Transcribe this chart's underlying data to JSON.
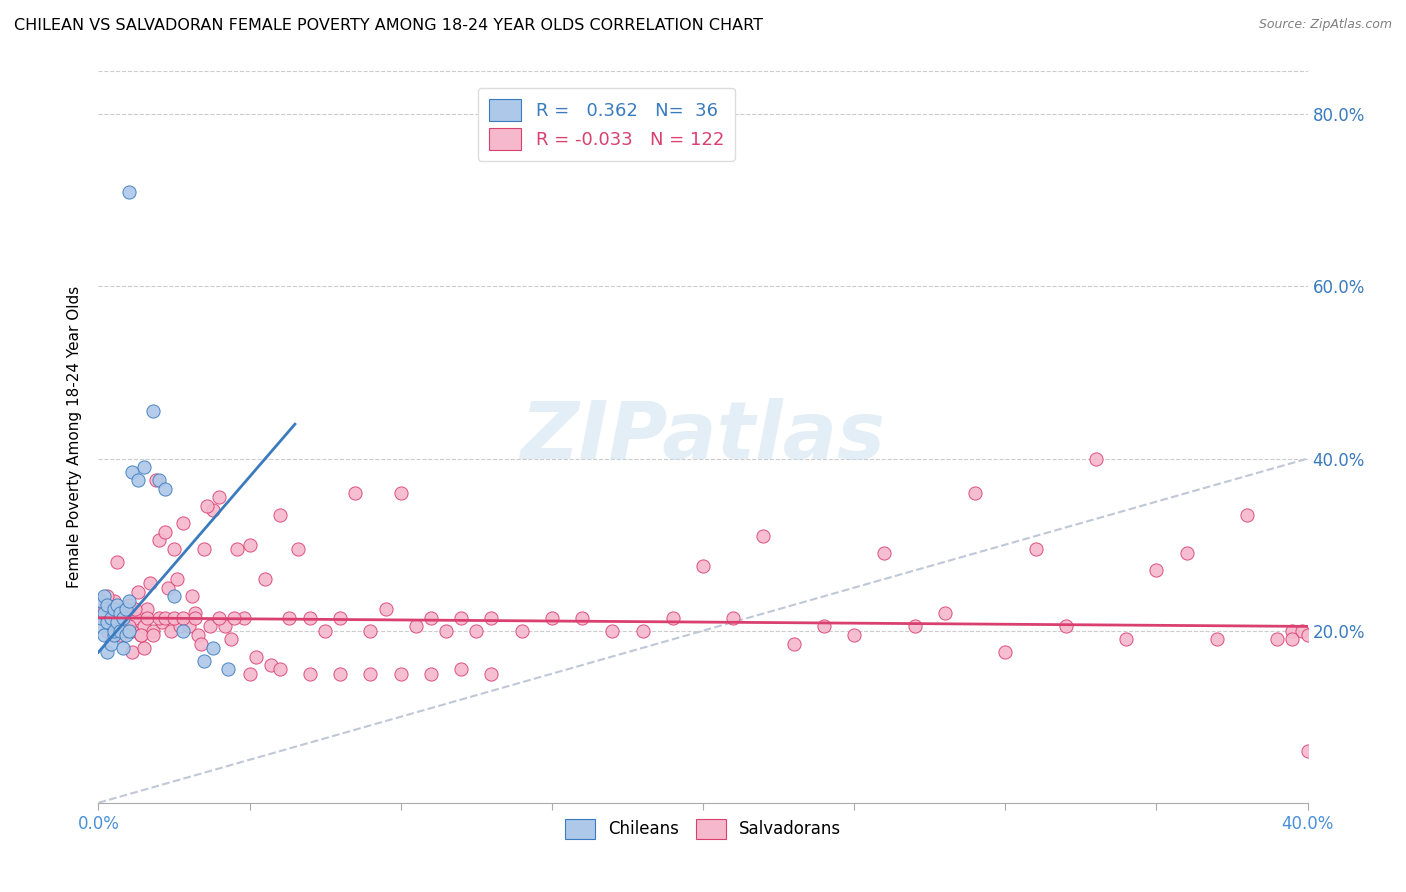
{
  "title": "CHILEAN VS SALVADORAN FEMALE POVERTY AMONG 18-24 YEAR OLDS CORRELATION CHART",
  "source": "Source: ZipAtlas.com",
  "ylabel": "Female Poverty Among 18-24 Year Olds",
  "xlim": [
    0.0,
    0.4
  ],
  "ylim": [
    0.0,
    0.85
  ],
  "chilean_color": "#adc8e8",
  "salvadoran_color": "#f5b8cc",
  "trend_chilean_color": "#3a7bbf",
  "trend_salvadoran_color": "#d94070",
  "diagonal_color": "#c0c8d8",
  "R_chilean": 0.362,
  "N_chilean": 36,
  "R_salvadoran": -0.033,
  "N_salvadoran": 122,
  "chilean_x": [
    0.001,
    0.001,
    0.001,
    0.002,
    0.002,
    0.002,
    0.003,
    0.003,
    0.003,
    0.004,
    0.004,
    0.005,
    0.005,
    0.005,
    0.006,
    0.006,
    0.007,
    0.007,
    0.008,
    0.008,
    0.009,
    0.009,
    0.01,
    0.01,
    0.011,
    0.013,
    0.015,
    0.018,
    0.02,
    0.022,
    0.025,
    0.028,
    0.035,
    0.038,
    0.043,
    0.01
  ],
  "chilean_y": [
    0.205,
    0.215,
    0.235,
    0.195,
    0.22,
    0.24,
    0.175,
    0.21,
    0.23,
    0.185,
    0.215,
    0.195,
    0.225,
    0.2,
    0.21,
    0.23,
    0.2,
    0.22,
    0.18,
    0.215,
    0.195,
    0.225,
    0.2,
    0.235,
    0.385,
    0.375,
    0.39,
    0.455,
    0.375,
    0.365,
    0.24,
    0.2,
    0.165,
    0.18,
    0.155,
    0.71
  ],
  "salvadoran_x": [
    0.001,
    0.002,
    0.003,
    0.004,
    0.005,
    0.005,
    0.006,
    0.007,
    0.007,
    0.008,
    0.009,
    0.009,
    0.01,
    0.011,
    0.011,
    0.012,
    0.013,
    0.014,
    0.015,
    0.015,
    0.016,
    0.017,
    0.018,
    0.019,
    0.02,
    0.021,
    0.022,
    0.023,
    0.024,
    0.025,
    0.026,
    0.027,
    0.028,
    0.03,
    0.031,
    0.032,
    0.033,
    0.034,
    0.035,
    0.037,
    0.038,
    0.04,
    0.042,
    0.044,
    0.046,
    0.048,
    0.05,
    0.052,
    0.055,
    0.057,
    0.06,
    0.063,
    0.066,
    0.07,
    0.075,
    0.08,
    0.085,
    0.09,
    0.095,
    0.1,
    0.105,
    0.11,
    0.115,
    0.12,
    0.125,
    0.13,
    0.14,
    0.15,
    0.16,
    0.17,
    0.18,
    0.19,
    0.2,
    0.21,
    0.22,
    0.23,
    0.24,
    0.25,
    0.26,
    0.27,
    0.28,
    0.29,
    0.3,
    0.31,
    0.32,
    0.33,
    0.34,
    0.35,
    0.36,
    0.37,
    0.38,
    0.39,
    0.395,
    0.398,
    0.4,
    0.4,
    0.003,
    0.006,
    0.008,
    0.01,
    0.012,
    0.014,
    0.016,
    0.018,
    0.02,
    0.022,
    0.025,
    0.028,
    0.032,
    0.036,
    0.04,
    0.045,
    0.05,
    0.06,
    0.07,
    0.08,
    0.09,
    0.1,
    0.11,
    0.12,
    0.13,
    0.395
  ],
  "salvadoran_y": [
    0.215,
    0.225,
    0.2,
    0.21,
    0.235,
    0.195,
    0.205,
    0.22,
    0.195,
    0.225,
    0.2,
    0.215,
    0.23,
    0.2,
    0.175,
    0.215,
    0.245,
    0.195,
    0.205,
    0.18,
    0.225,
    0.255,
    0.2,
    0.375,
    0.305,
    0.21,
    0.315,
    0.25,
    0.2,
    0.295,
    0.26,
    0.205,
    0.325,
    0.205,
    0.24,
    0.22,
    0.195,
    0.185,
    0.295,
    0.205,
    0.34,
    0.355,
    0.205,
    0.19,
    0.295,
    0.215,
    0.3,
    0.17,
    0.26,
    0.16,
    0.335,
    0.215,
    0.295,
    0.215,
    0.2,
    0.215,
    0.36,
    0.2,
    0.225,
    0.36,
    0.205,
    0.215,
    0.2,
    0.215,
    0.2,
    0.215,
    0.2,
    0.215,
    0.215,
    0.2,
    0.2,
    0.215,
    0.275,
    0.215,
    0.31,
    0.185,
    0.205,
    0.195,
    0.29,
    0.205,
    0.22,
    0.36,
    0.175,
    0.295,
    0.205,
    0.4,
    0.19,
    0.27,
    0.29,
    0.19,
    0.335,
    0.19,
    0.2,
    0.2,
    0.195,
    0.06,
    0.24,
    0.28,
    0.215,
    0.205,
    0.225,
    0.195,
    0.215,
    0.195,
    0.215,
    0.215,
    0.215,
    0.215,
    0.215,
    0.345,
    0.215,
    0.215,
    0.15,
    0.155,
    0.15,
    0.15,
    0.15,
    0.15,
    0.15,
    0.155,
    0.15,
    0.19
  ]
}
